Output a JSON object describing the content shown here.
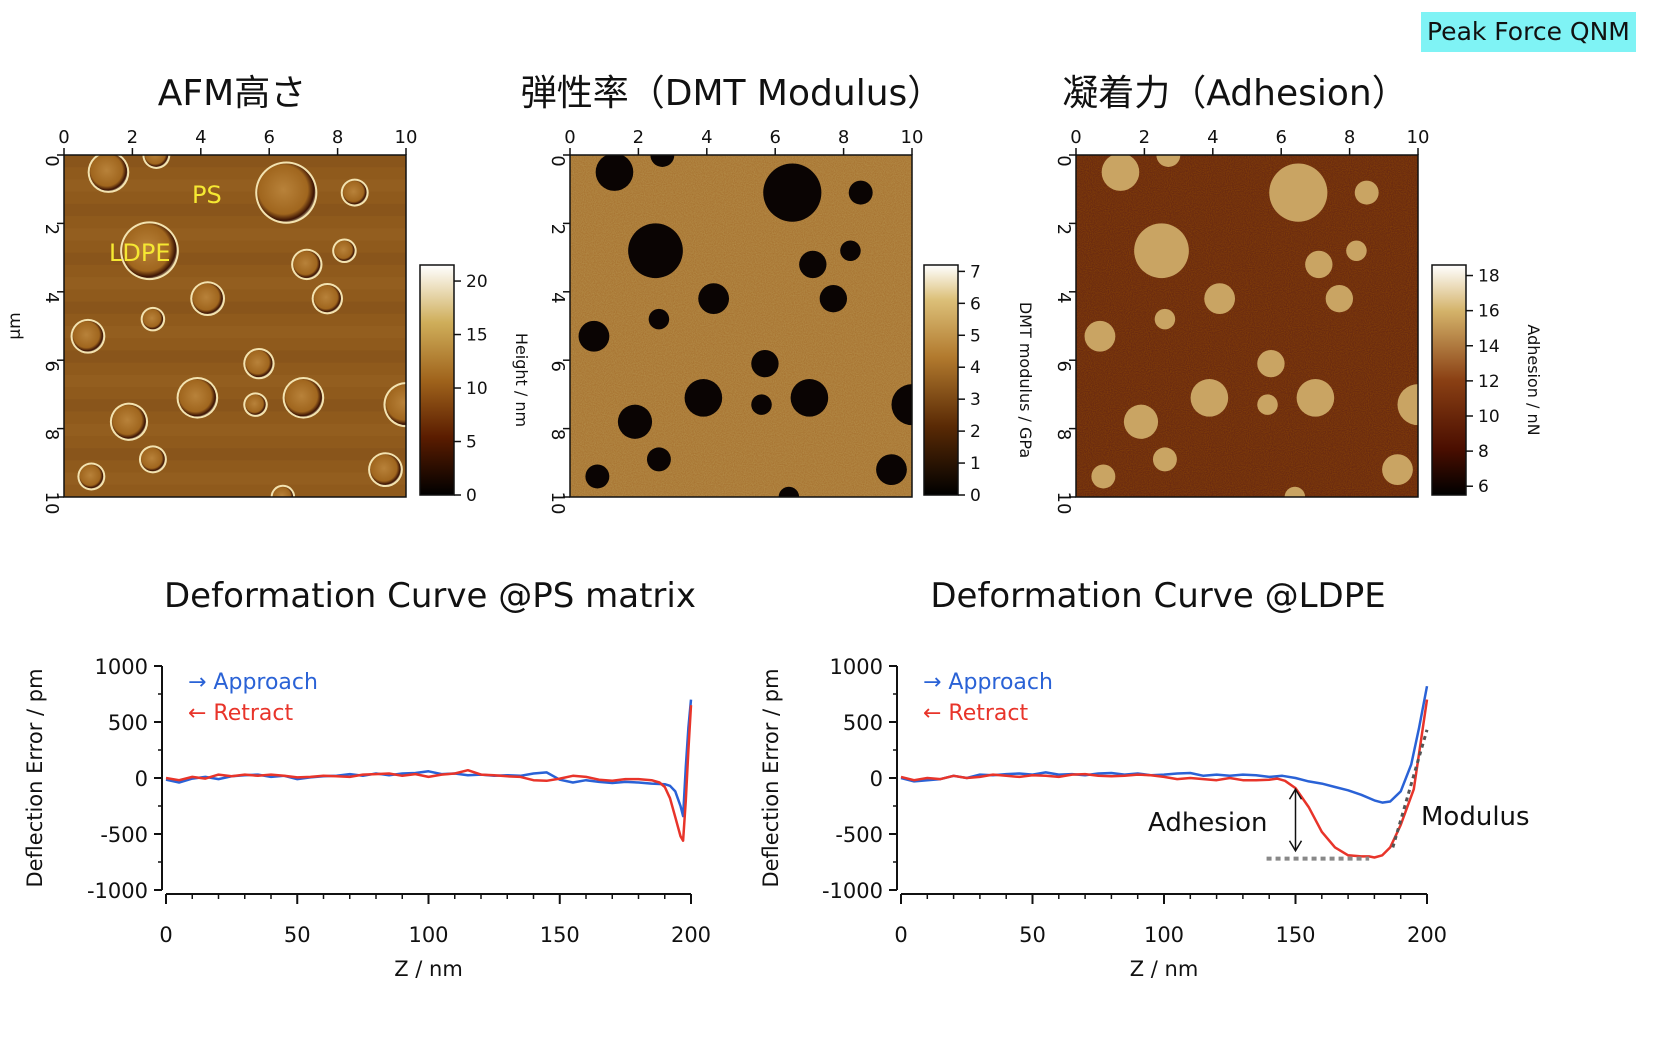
{
  "badge": "Peak Force QNM",
  "maps": [
    {
      "title": "AFM高さ",
      "x_ticks": [
        "0",
        "2",
        "4",
        "6",
        "8",
        "10"
      ],
      "y_ticks": [
        "0",
        "2",
        "4",
        "6",
        "8",
        "10"
      ],
      "y_unit": "μm",
      "colorbar_label": "Height / nm",
      "colorbar_ticks": [
        "0",
        "5",
        "10",
        "15",
        "20"
      ],
      "colorbar_range": [
        0,
        21.5
      ],
      "annotations": [
        "PS",
        "LDPE"
      ],
      "palette": "height"
    },
    {
      "title": "弾性率（DMT Modulus）",
      "x_ticks": [
        "0",
        "2",
        "4",
        "6",
        "8",
        "10"
      ],
      "y_ticks": [
        "0",
        "2",
        "4",
        "6",
        "8",
        "10"
      ],
      "colorbar_label": "DMT modulus / GPa",
      "colorbar_ticks": [
        "0",
        "1",
        "2",
        "3",
        "4",
        "5",
        "6",
        "7"
      ],
      "colorbar_range": [
        0,
        7.2
      ],
      "palette": "modulus"
    },
    {
      "title": "凝着力（Adhesion）",
      "x_ticks": [
        "0",
        "2",
        "4",
        "6",
        "8",
        "10"
      ],
      "y_ticks": [
        "0",
        "2",
        "4",
        "6",
        "8",
        "10"
      ],
      "colorbar_label": "Adhesion / nN",
      "colorbar_ticks": [
        "6",
        "8",
        "10",
        "12",
        "14",
        "16",
        "18"
      ],
      "colorbar_range": [
        5.5,
        18.6
      ],
      "palette": "adhesion"
    }
  ],
  "colors": {
    "approach": "#2a62d6",
    "retract": "#e8342a",
    "badge": "#7ff3f5",
    "dashed_guide": "#888888"
  },
  "chart_data": [
    {
      "type": "line",
      "title": "Deformation Curve @PS matrix",
      "xlabel": "Z / nm",
      "ylabel": "Deflection Error / pm",
      "xlim": [
        0,
        200
      ],
      "ylim": [
        -1000,
        1000
      ],
      "x_ticks": [
        0,
        50,
        100,
        150,
        200
      ],
      "y_ticks": [
        -1000,
        -500,
        0,
        500,
        1000
      ],
      "legend": [
        "→ Approach",
        "← Retract"
      ],
      "legend_position": "top-left",
      "series": [
        {
          "name": "Approach",
          "color": "#2a62d6",
          "x": [
            0,
            5,
            10,
            15,
            20,
            25,
            30,
            35,
            40,
            45,
            50,
            55,
            60,
            65,
            70,
            75,
            80,
            85,
            90,
            95,
            100,
            105,
            110,
            115,
            120,
            125,
            130,
            135,
            140,
            145,
            150,
            155,
            160,
            165,
            170,
            175,
            180,
            185,
            190,
            192,
            194,
            196,
            197,
            198,
            199,
            200
          ],
          "y": [
            -15,
            -40,
            -5,
            10,
            -10,
            15,
            25,
            30,
            10,
            20,
            -10,
            5,
            15,
            20,
            35,
            20,
            40,
            25,
            40,
            45,
            60,
            35,
            40,
            25,
            30,
            20,
            25,
            20,
            40,
            50,
            -15,
            -40,
            -20,
            -35,
            -45,
            -35,
            -40,
            -50,
            -55,
            -70,
            -120,
            -250,
            -340,
            100,
            450,
            700
          ]
        },
        {
          "name": "Retract",
          "color": "#e8342a",
          "x": [
            0,
            5,
            10,
            15,
            20,
            25,
            30,
            35,
            40,
            45,
            50,
            55,
            60,
            65,
            70,
            75,
            80,
            85,
            90,
            95,
            100,
            105,
            110,
            115,
            120,
            125,
            130,
            135,
            140,
            145,
            150,
            155,
            160,
            165,
            170,
            175,
            180,
            185,
            188,
            190,
            192,
            194,
            196,
            197,
            198,
            199,
            200
          ],
          "y": [
            0,
            -20,
            10,
            -5,
            30,
            15,
            30,
            20,
            30,
            20,
            5,
            10,
            20,
            15,
            10,
            30,
            35,
            40,
            20,
            35,
            10,
            30,
            40,
            70,
            30,
            25,
            15,
            10,
            -20,
            -25,
            -5,
            20,
            10,
            -15,
            -25,
            -10,
            -10,
            -20,
            -40,
            -80,
            -180,
            -350,
            -520,
            -560,
            -200,
            250,
            650
          ]
        }
      ]
    },
    {
      "type": "line",
      "title": "Deformation Curve @LDPE",
      "xlabel": "Z / nm",
      "ylabel": "Deflection Error / pm",
      "xlim": [
        0,
        200
      ],
      "ylim": [
        -1000,
        1000
      ],
      "x_ticks": [
        0,
        50,
        100,
        150,
        200
      ],
      "y_ticks": [
        -1000,
        -500,
        0,
        500,
        1000
      ],
      "legend": [
        "→ Approach",
        "← Retract"
      ],
      "legend_position": "top-left",
      "annotations": [
        "Adhesion",
        "Modulus"
      ],
      "adhesion_arrow": {
        "x": 150,
        "y_from": -100,
        "y_to": -650
      },
      "adhesion_baseline": {
        "x": [
          139,
          178
        ],
        "y": -720
      },
      "modulus_fit": {
        "x": [
          187,
          200
        ],
        "y": [
          -620,
          430
        ]
      },
      "series": [
        {
          "name": "Approach",
          "color": "#2a62d6",
          "x": [
            0,
            5,
            10,
            15,
            20,
            25,
            30,
            35,
            40,
            45,
            50,
            55,
            60,
            65,
            70,
            75,
            80,
            85,
            90,
            95,
            100,
            105,
            110,
            115,
            120,
            125,
            130,
            135,
            140,
            145,
            150,
            155,
            160,
            165,
            170,
            175,
            180,
            183,
            186,
            190,
            194,
            197,
            200
          ],
          "y": [
            0,
            -30,
            -20,
            -10,
            20,
            0,
            30,
            25,
            35,
            40,
            30,
            50,
            30,
            35,
            25,
            40,
            45,
            30,
            40,
            25,
            30,
            40,
            45,
            20,
            30,
            20,
            30,
            25,
            10,
            20,
            0,
            -30,
            -50,
            -80,
            -110,
            -150,
            -200,
            -220,
            -210,
            -120,
            120,
            450,
            820
          ]
        },
        {
          "name": "Retract",
          "color": "#e8342a",
          "x": [
            0,
            5,
            10,
            15,
            20,
            25,
            30,
            35,
            40,
            45,
            50,
            55,
            60,
            65,
            70,
            75,
            80,
            85,
            90,
            95,
            100,
            105,
            110,
            115,
            120,
            125,
            130,
            135,
            140,
            143,
            146,
            150,
            155,
            160,
            165,
            170,
            175,
            178,
            180,
            183,
            186,
            190,
            195,
            200
          ],
          "y": [
            10,
            -20,
            0,
            -10,
            20,
            0,
            10,
            30,
            20,
            10,
            25,
            20,
            10,
            30,
            35,
            20,
            15,
            20,
            30,
            25,
            10,
            -10,
            0,
            -10,
            -20,
            0,
            -20,
            -20,
            -15,
            -5,
            -25,
            -90,
            -260,
            -480,
            -620,
            -690,
            -700,
            -700,
            -710,
            -690,
            -620,
            -420,
            -100,
            700
          ]
        }
      ]
    }
  ]
}
